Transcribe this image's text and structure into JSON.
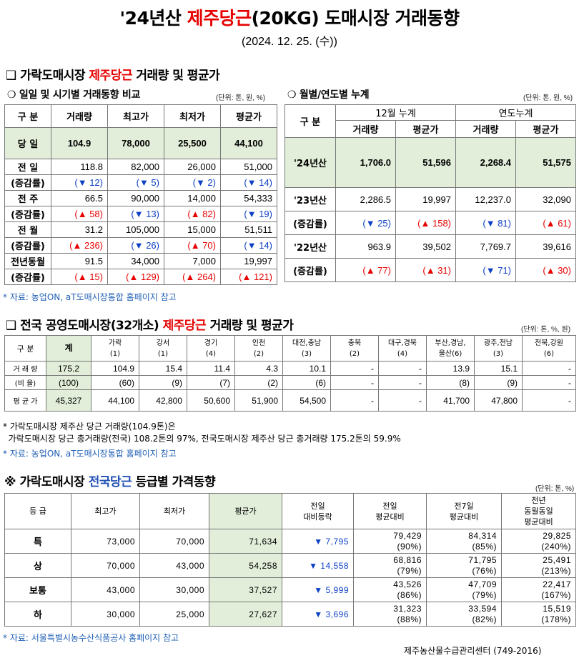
{
  "title": {
    "prefix": "'24년산 ",
    "highlight": "제주당근",
    "suffix": "(20KG) 도매시장 거래동향"
  },
  "date": "(2024. 12. 25. (수))",
  "section1": {
    "heading_prefix": "❑ 가락도매시장 ",
    "heading_highlight": "제주당근",
    "heading_suffix": " 거래량 및 평균가",
    "left": {
      "subtitle": "❍ 일일 및 시기별 거래동향 비교",
      "unit": "(단위: 톤, 원, %)",
      "headers": [
        "구  분",
        "거래량",
        "최고가",
        "최저가",
        "평균가"
      ],
      "today": {
        "label": "당  일",
        "values": [
          "104.9",
          "78,000",
          "25,500",
          "44,100"
        ]
      },
      "rows": [
        {
          "label": "전  일",
          "values": [
            "118.8",
            "82,000",
            "26,000",
            "51,000"
          ],
          "chg_label": "(증감률)",
          "changes": [
            "(▼ 12)",
            "(▼ 5)",
            "(▼ 2)",
            "(▼ 14)"
          ],
          "dirs": [
            "dn",
            "dn",
            "dn",
            "dn"
          ]
        },
        {
          "label": "전  주",
          "values": [
            "66.5",
            "90,000",
            "14,000",
            "54,333"
          ],
          "chg_label": "(증감률)",
          "changes": [
            "(▲ 58)",
            "(▼ 13)",
            "(▲ 82)",
            "(▼ 19)"
          ],
          "dirs": [
            "up",
            "dn",
            "up",
            "dn"
          ]
        },
        {
          "label": "전  월",
          "values": [
            "31.2",
            "105,000",
            "15,000",
            "51,511"
          ],
          "chg_label": "(증감률)",
          "changes": [
            "(▲ 236)",
            "(▼ 26)",
            "(▲ 70)",
            "(▼ 14)"
          ],
          "dirs": [
            "up",
            "dn",
            "up",
            "dn"
          ]
        },
        {
          "label": "전년동월",
          "values": [
            "91.5",
            "34,000",
            "7,000",
            "19,997"
          ],
          "chg_label": "(증감률)",
          "changes": [
            "(▲ 15)",
            "(▲ 129)",
            "(▲ 264)",
            "(▲ 121)"
          ],
          "dirs": [
            "up",
            "up",
            "up",
            "up"
          ]
        }
      ]
    },
    "right": {
      "subtitle": "❍ 월별/연도별 누계",
      "unit": "(단위: 톤, 원, %)",
      "col_label": "구  분",
      "group1": "12월 누계",
      "group2": "연도누계",
      "headers": [
        "거래량",
        "평균가",
        "거래량",
        "평균가"
      ],
      "current": {
        "label": "'24년산",
        "values": [
          "1,706.0",
          "51,596",
          "2,268.4",
          "51,575"
        ]
      },
      "rows": [
        {
          "label": "'23년산",
          "values": [
            "2,286.5",
            "19,997",
            "12,237.0",
            "32,090"
          ],
          "chg_label": "(증감률)",
          "changes": [
            "(▼ 25)",
            "(▲ 158)",
            "(▼ 81)",
            "(▲ 61)"
          ],
          "dirs": [
            "dn",
            "up",
            "dn",
            "up"
          ]
        },
        {
          "label": "'22년산",
          "values": [
            "963.9",
            "39,502",
            "7,769.7",
            "39,616"
          ],
          "chg_label": "(증감률)",
          "changes": [
            "(▲ 77)",
            "(▲ 31)",
            "(▼ 71)",
            "(▲ 30)"
          ],
          "dirs": [
            "up",
            "up",
            "dn",
            "up"
          ]
        }
      ]
    },
    "source": "* 자료: 농업ON, aT도매시장통합 홈페이지 참고"
  },
  "section2": {
    "heading_prefix": "❑ 전국 공영도매시장(32개소) ",
    "heading_highlight": "제주당근",
    "heading_suffix": " 거래량 및 평균가",
    "unit": "(단위: 톤, %, 원)",
    "col_label": "구  분",
    "headers": [
      [
        "계",
        ""
      ],
      [
        "가락",
        "(1)"
      ],
      [
        "강서",
        "(1)"
      ],
      [
        "경기",
        "(4)"
      ],
      [
        "인천",
        "(2)"
      ],
      [
        "대전,충남",
        "(3)"
      ],
      [
        "충북",
        "(2)"
      ],
      [
        "대구,경북",
        "(4)"
      ],
      [
        "부산,경남,",
        "울산(6)"
      ],
      [
        "광주,전남",
        "(3)"
      ],
      [
        "전북,강원",
        "(6)"
      ]
    ],
    "rows": [
      {
        "label": "거 래 량",
        "values": [
          "175.2",
          "104.9",
          "15.4",
          "11.4",
          "4.3",
          "10.1",
          "-",
          "-",
          "13.9",
          "15.1",
          "-"
        ]
      },
      {
        "label": "(비  율)",
        "values": [
          "(100)",
          "(60)",
          "(9)",
          "(7)",
          "(2)",
          "(6)",
          "-",
          "-",
          "(8)",
          "(9)",
          "-"
        ]
      },
      {
        "label": "평 균 가",
        "values": [
          "45,327",
          "44,100",
          "42,800",
          "50,600",
          "51,900",
          "54,500",
          "-",
          "-",
          "41,700",
          "47,800",
          "-"
        ]
      }
    ],
    "notes": [
      "* 가락도매시장 제주산 당근 거래량(104.9톤)은",
      "  가락도매시장 당근 총거래량(전국) 108.2톤의 97%, 전국도매시장 제주산 당근 총거래량 175.2톤의 59.9%"
    ],
    "source": "* 자료: 농업ON, aT도매시장통합 홈페이지 참고"
  },
  "section3": {
    "heading_prefix": "※ 가락도매시장 ",
    "heading_highlight": "전국당근",
    "heading_suffix": " 등급별 가격동향",
    "unit": "(단위: 톤, %)",
    "headers": [
      "등  급",
      "최고가",
      "최저가",
      "평균가",
      "전일\n대비등락",
      "전일\n평균대비",
      "전7일\n평균대비",
      "전년\n동월동일\n평균대비"
    ],
    "rows": [
      {
        "grade": "특",
        "max": "73,000",
        "min": "70,000",
        "avg": "71,634",
        "diff": "▼ 7,795",
        "prev_day": [
          "79,429",
          "(90%)"
        ],
        "prev_7": [
          "84,314",
          "(85%)"
        ],
        "prev_year": [
          "29,825",
          "(240%)"
        ]
      },
      {
        "grade": "상",
        "max": "70,000",
        "min": "43,000",
        "avg": "54,258",
        "diff": "▼ 14,558",
        "prev_day": [
          "68,816",
          "(79%)"
        ],
        "prev_7": [
          "71,795",
          "(76%)"
        ],
        "prev_year": [
          "25,491",
          "(213%)"
        ]
      },
      {
        "grade": "보통",
        "max": "43,000",
        "min": "30,000",
        "avg": "37,527",
        "diff": "▼ 5,999",
        "prev_day": [
          "43,526",
          "(86%)"
        ],
        "prev_7": [
          "47,709",
          "(79%)"
        ],
        "prev_year": [
          "22,417",
          "(167%)"
        ]
      },
      {
        "grade": "하",
        "max": "30,000",
        "min": "25,000",
        "avg": "27,627",
        "diff": "▼ 3,696",
        "prev_day": [
          "31,323",
          "(88%)"
        ],
        "prev_7": [
          "33,594",
          "(82%)"
        ],
        "prev_year": [
          "15,519",
          "(178%)"
        ]
      }
    ],
    "source": "* 자료: 서울특별시농수산식품공사 홈페이지 참고"
  },
  "footer": "제주농산물수급관리센터 (749-2016)"
}
